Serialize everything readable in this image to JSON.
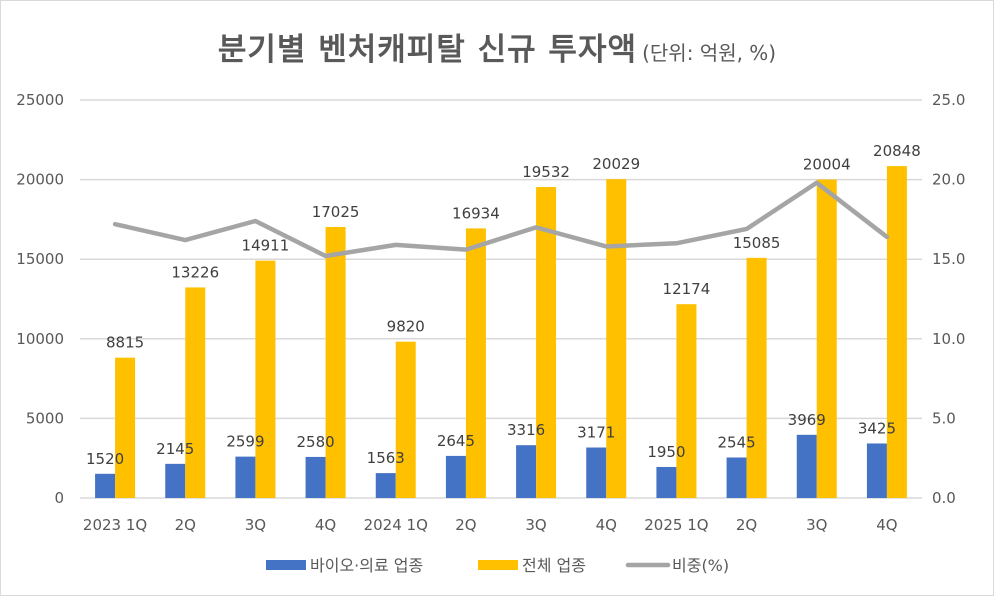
{
  "chart_data": {
    "type": "bar",
    "title": "분기별 벤처캐피탈 신규 투자액",
    "subtitle": "(단위: 억원, %)",
    "categories": [
      "2023 1Q",
      "2Q",
      "3Q",
      "4Q",
      "2024 1Q",
      "2Q",
      "3Q",
      "4Q",
      "2025 1Q",
      "2Q",
      "3Q",
      "4Q"
    ],
    "series": [
      {
        "name": "바이오·의료 업종",
        "type": "bar",
        "axis": "left",
        "color": "#4472C4",
        "values": [
          1520,
          2145,
          2599,
          2580,
          1563,
          2645,
          3316,
          3171,
          1950,
          2545,
          3969,
          3425
        ]
      },
      {
        "name": "전체 업종",
        "type": "bar",
        "axis": "left",
        "color": "#FFC000",
        "values": [
          8815,
          13226,
          14911,
          17025,
          9820,
          16934,
          19532,
          20029,
          12174,
          15085,
          20004,
          20848
        ]
      },
      {
        "name": "비중(%)",
        "type": "line",
        "axis": "right",
        "color": "#A5A5A5",
        "values": [
          17.2,
          16.2,
          17.4,
          15.2,
          15.9,
          15.6,
          17.0,
          15.8,
          16.0,
          16.9,
          19.8,
          16.4
        ]
      }
    ],
    "y_left": {
      "ylim": [
        0,
        25000
      ],
      "ticks": [
        "0",
        "5000",
        "10000",
        "15000",
        "20000",
        "25000"
      ]
    },
    "y_right": {
      "ylim": [
        0,
        25
      ],
      "ticks": [
        "0.0",
        "5.0",
        "10.0",
        "15.0",
        "20.0",
        "25.0"
      ]
    },
    "grid": true,
    "legend": "bottom",
    "xlabel": "",
    "ylabel": ""
  }
}
